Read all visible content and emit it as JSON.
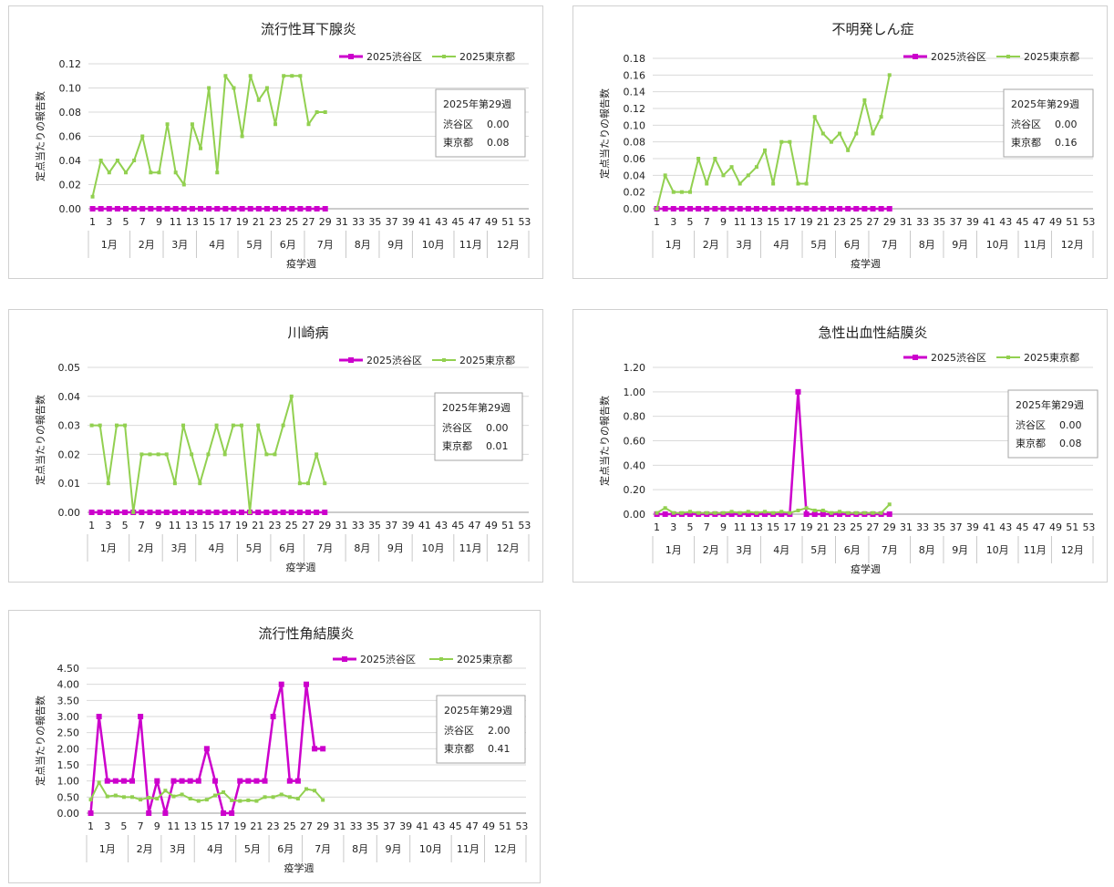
{
  "chart_data": [
    {
      "type": "line",
      "title": "流行性耳下腺炎",
      "ylabel": "定点当たりの報告数",
      "xlabel": "疫学週",
      "ylim": [
        0,
        0.12
      ],
      "ytick_step": 0.02,
      "ytick_labels": [
        "0.00",
        "0.02",
        "0.04",
        "0.06",
        "0.08",
        "0.10",
        "0.12"
      ],
      "x_tick_labels": [
        "1",
        "3",
        "5",
        "7",
        "9",
        "11",
        "13",
        "15",
        "17",
        "19",
        "21",
        "23",
        "25",
        "27",
        "29",
        "31",
        "33",
        "35",
        "37",
        "39",
        "41",
        "43",
        "45",
        "47",
        "49",
        "51",
        "53"
      ],
      "months": [
        "1月",
        "2月",
        "3月",
        "4月",
        "5月",
        "6月",
        "7月",
        "8月",
        "9月",
        "10月",
        "11月",
        "12月"
      ],
      "legend": "top-right",
      "grid": true,
      "info_box": {
        "title": "2025年第29週",
        "rows": [
          {
            "label": "渋谷区",
            "value": "0.00"
          },
          {
            "label": "東京都",
            "value": "0.08"
          }
        ]
      },
      "series": [
        {
          "name": "2025渋谷区",
          "color": "#cc00cc",
          "marker": "square",
          "values": [
            0,
            0,
            0,
            0,
            0,
            0,
            0,
            0,
            0,
            0,
            0,
            0,
            0,
            0,
            0,
            0,
            0,
            0,
            0,
            0,
            0,
            0,
            0,
            0,
            0,
            0,
            0,
            0,
            0
          ]
        },
        {
          "name": "2025東京都",
          "color": "#92d050",
          "marker": "small",
          "values": [
            0.01,
            0.04,
            0.03,
            0.04,
            0.03,
            0.04,
            0.06,
            0.03,
            0.03,
            0.07,
            0.03,
            0.02,
            0.07,
            0.05,
            0.1,
            0.03,
            0.11,
            0.1,
            0.06,
            0.11,
            0.09,
            0.1,
            0.07,
            0.11,
            0.11,
            0.11,
            0.07,
            0.08,
            0.08
          ]
        }
      ]
    },
    {
      "type": "line",
      "title": "不明発しん症",
      "ylabel": "定点当たりの報告数",
      "xlabel": "疫学週",
      "ylim": [
        0,
        0.18
      ],
      "ytick_step": 0.02,
      "ytick_labels": [
        "0.00",
        "0.02",
        "0.04",
        "0.06",
        "0.08",
        "0.10",
        "0.12",
        "0.14",
        "0.16",
        "0.18"
      ],
      "x_tick_labels": [
        "1",
        "3",
        "5",
        "7",
        "9",
        "11",
        "13",
        "15",
        "17",
        "19",
        "21",
        "23",
        "25",
        "27",
        "29",
        "31",
        "33",
        "35",
        "37",
        "39",
        "41",
        "43",
        "45",
        "47",
        "49",
        "51",
        "53"
      ],
      "months": [
        "1月",
        "2月",
        "3月",
        "4月",
        "5月",
        "6月",
        "7月",
        "8月",
        "9月",
        "10月",
        "11月",
        "12月"
      ],
      "legend": "top-right",
      "grid": true,
      "info_box": {
        "title": "2025年第29週",
        "rows": [
          {
            "label": "渋谷区",
            "value": "0.00"
          },
          {
            "label": "東京都",
            "value": "0.16"
          }
        ]
      },
      "series": [
        {
          "name": "2025渋谷区",
          "color": "#cc00cc",
          "marker": "square",
          "values": [
            0,
            0,
            0,
            0,
            0,
            0,
            0,
            0,
            0,
            0,
            0,
            0,
            0,
            0,
            0,
            0,
            0,
            0,
            0,
            0,
            0,
            0,
            0,
            0,
            0,
            0,
            0,
            0,
            0
          ]
        },
        {
          "name": "2025東京都",
          "color": "#92d050",
          "marker": "small",
          "values": [
            0.0,
            0.04,
            0.02,
            0.02,
            0.02,
            0.06,
            0.03,
            0.06,
            0.04,
            0.05,
            0.03,
            0.04,
            0.05,
            0.07,
            0.03,
            0.08,
            0.08,
            0.03,
            0.03,
            0.11,
            0.09,
            0.08,
            0.09,
            0.07,
            0.09,
            0.13,
            0.09,
            0.11,
            0.16
          ]
        }
      ]
    },
    {
      "type": "line",
      "title": "川崎病",
      "ylabel": "定点当たりの報告数",
      "xlabel": "疫学週",
      "ylim": [
        0,
        0.05
      ],
      "ytick_step": 0.01,
      "ytick_labels": [
        "0.00",
        "0.01",
        "0.02",
        "0.03",
        "0.04",
        "0.05"
      ],
      "x_tick_labels": [
        "1",
        "3",
        "5",
        "7",
        "9",
        "11",
        "13",
        "15",
        "17",
        "19",
        "21",
        "23",
        "25",
        "27",
        "29",
        "31",
        "33",
        "35",
        "37",
        "39",
        "41",
        "43",
        "45",
        "47",
        "49",
        "51",
        "53"
      ],
      "months": [
        "1月",
        "2月",
        "3月",
        "4月",
        "5月",
        "6月",
        "7月",
        "8月",
        "9月",
        "10月",
        "11月",
        "12月"
      ],
      "legend": "top-right",
      "grid": true,
      "info_box": {
        "title": "2025年第29週",
        "rows": [
          {
            "label": "渋谷区",
            "value": "0.00"
          },
          {
            "label": "東京都",
            "value": "0.01"
          }
        ]
      },
      "series": [
        {
          "name": "2025渋谷区",
          "color": "#cc00cc",
          "marker": "square",
          "values": [
            0,
            0,
            0,
            0,
            0,
            0,
            0,
            0,
            0,
            0,
            0,
            0,
            0,
            0,
            0,
            0,
            0,
            0,
            0,
            0,
            0,
            0,
            0,
            0,
            0,
            0,
            0,
            0,
            0
          ]
        },
        {
          "name": "2025東京都",
          "color": "#92d050",
          "marker": "small",
          "values": [
            0.03,
            0.03,
            0.01,
            0.03,
            0.03,
            0.0,
            0.02,
            0.02,
            0.02,
            0.02,
            0.01,
            0.03,
            0.02,
            0.01,
            0.02,
            0.03,
            0.02,
            0.03,
            0.03,
            0.0,
            0.03,
            0.02,
            0.02,
            0.03,
            0.04,
            0.01,
            0.01,
            0.02,
            0.01
          ]
        }
      ]
    },
    {
      "type": "line",
      "title": "急性出血性結膜炎",
      "ylabel": "定点当たりの報告数",
      "xlabel": "疫学週",
      "ylim": [
        0,
        1.2
      ],
      "ytick_step": 0.2,
      "ytick_labels": [
        "0.00",
        "0.20",
        "0.40",
        "0.60",
        "0.80",
        "1.00",
        "1.20"
      ],
      "x_tick_labels": [
        "1",
        "3",
        "5",
        "7",
        "9",
        "11",
        "13",
        "15",
        "17",
        "19",
        "21",
        "23",
        "25",
        "27",
        "29",
        "31",
        "33",
        "35",
        "37",
        "39",
        "41",
        "43",
        "45",
        "47",
        "49",
        "51",
        "53"
      ],
      "months": [
        "1月",
        "2月",
        "3月",
        "4月",
        "5月",
        "6月",
        "7月",
        "8月",
        "9月",
        "10月",
        "11月",
        "12月"
      ],
      "legend": "top-right",
      "grid": true,
      "info_box": {
        "title": "2025年第29週",
        "rows": [
          {
            "label": "渋谷区",
            "value": "0.00"
          },
          {
            "label": "東京都",
            "value": "0.08"
          }
        ]
      },
      "series": [
        {
          "name": "2025渋谷区",
          "color": "#cc00cc",
          "marker": "square",
          "values": [
            0,
            0,
            0,
            0,
            0,
            0,
            0,
            0,
            0,
            0,
            0,
            0,
            0,
            0,
            0,
            0,
            0,
            1.0,
            0,
            0,
            0,
            0,
            0,
            0,
            0,
            0,
            0,
            0,
            0
          ]
        },
        {
          "name": "2025東京都",
          "color": "#92d050",
          "marker": "small",
          "values": [
            0.01,
            0.05,
            0.01,
            0.01,
            0.02,
            0.01,
            0.01,
            0.01,
            0.01,
            0.02,
            0.01,
            0.02,
            0.01,
            0.02,
            0.01,
            0.02,
            0.01,
            0.03,
            0.05,
            0.03,
            0.03,
            0.01,
            0.02,
            0.01,
            0.01,
            0.01,
            0.01,
            0.01,
            0.08
          ]
        }
      ]
    },
    {
      "type": "line",
      "title": "流行性角結膜炎",
      "ylabel": "定点当たりの報告数",
      "xlabel": "疫学週",
      "ylim": [
        0,
        4.5
      ],
      "ytick_step": 0.5,
      "ytick_labels": [
        "0.00",
        "0.50",
        "1.00",
        "1.50",
        "2.00",
        "2.50",
        "3.00",
        "3.50",
        "4.00",
        "4.50"
      ],
      "x_tick_labels": [
        "1",
        "3",
        "5",
        "7",
        "9",
        "11",
        "13",
        "15",
        "17",
        "19",
        "21",
        "23",
        "25",
        "27",
        "29",
        "31",
        "33",
        "35",
        "37",
        "39",
        "41",
        "43",
        "45",
        "47",
        "49",
        "51",
        "53"
      ],
      "months": [
        "1月",
        "2月",
        "3月",
        "4月",
        "5月",
        "6月",
        "7月",
        "8月",
        "9月",
        "10月",
        "11月",
        "12月"
      ],
      "legend": "top-right",
      "grid": true,
      "info_box": {
        "title": "2025年第29週",
        "rows": [
          {
            "label": "渋谷区",
            "value": "2.00"
          },
          {
            "label": "東京都",
            "value": "0.41"
          }
        ]
      },
      "series": [
        {
          "name": "2025渋谷区",
          "color": "#cc00cc",
          "marker": "square",
          "values": [
            0,
            3,
            1,
            1,
            1,
            1,
            3,
            0,
            1,
            0,
            1,
            1,
            1,
            1,
            2,
            1,
            0,
            0,
            1,
            1,
            1,
            1,
            3,
            4,
            1,
            1,
            4,
            2,
            2
          ]
        },
        {
          "name": "2025東京都",
          "color": "#92d050",
          "marker": "small",
          "values": [
            0.42,
            0.95,
            0.52,
            0.55,
            0.5,
            0.5,
            0.42,
            0.48,
            0.45,
            0.7,
            0.52,
            0.58,
            0.45,
            0.38,
            0.42,
            0.55,
            0.65,
            0.4,
            0.38,
            0.4,
            0.38,
            0.5,
            0.5,
            0.58,
            0.5,
            0.45,
            0.75,
            0.7,
            0.41
          ]
        }
      ]
    }
  ]
}
